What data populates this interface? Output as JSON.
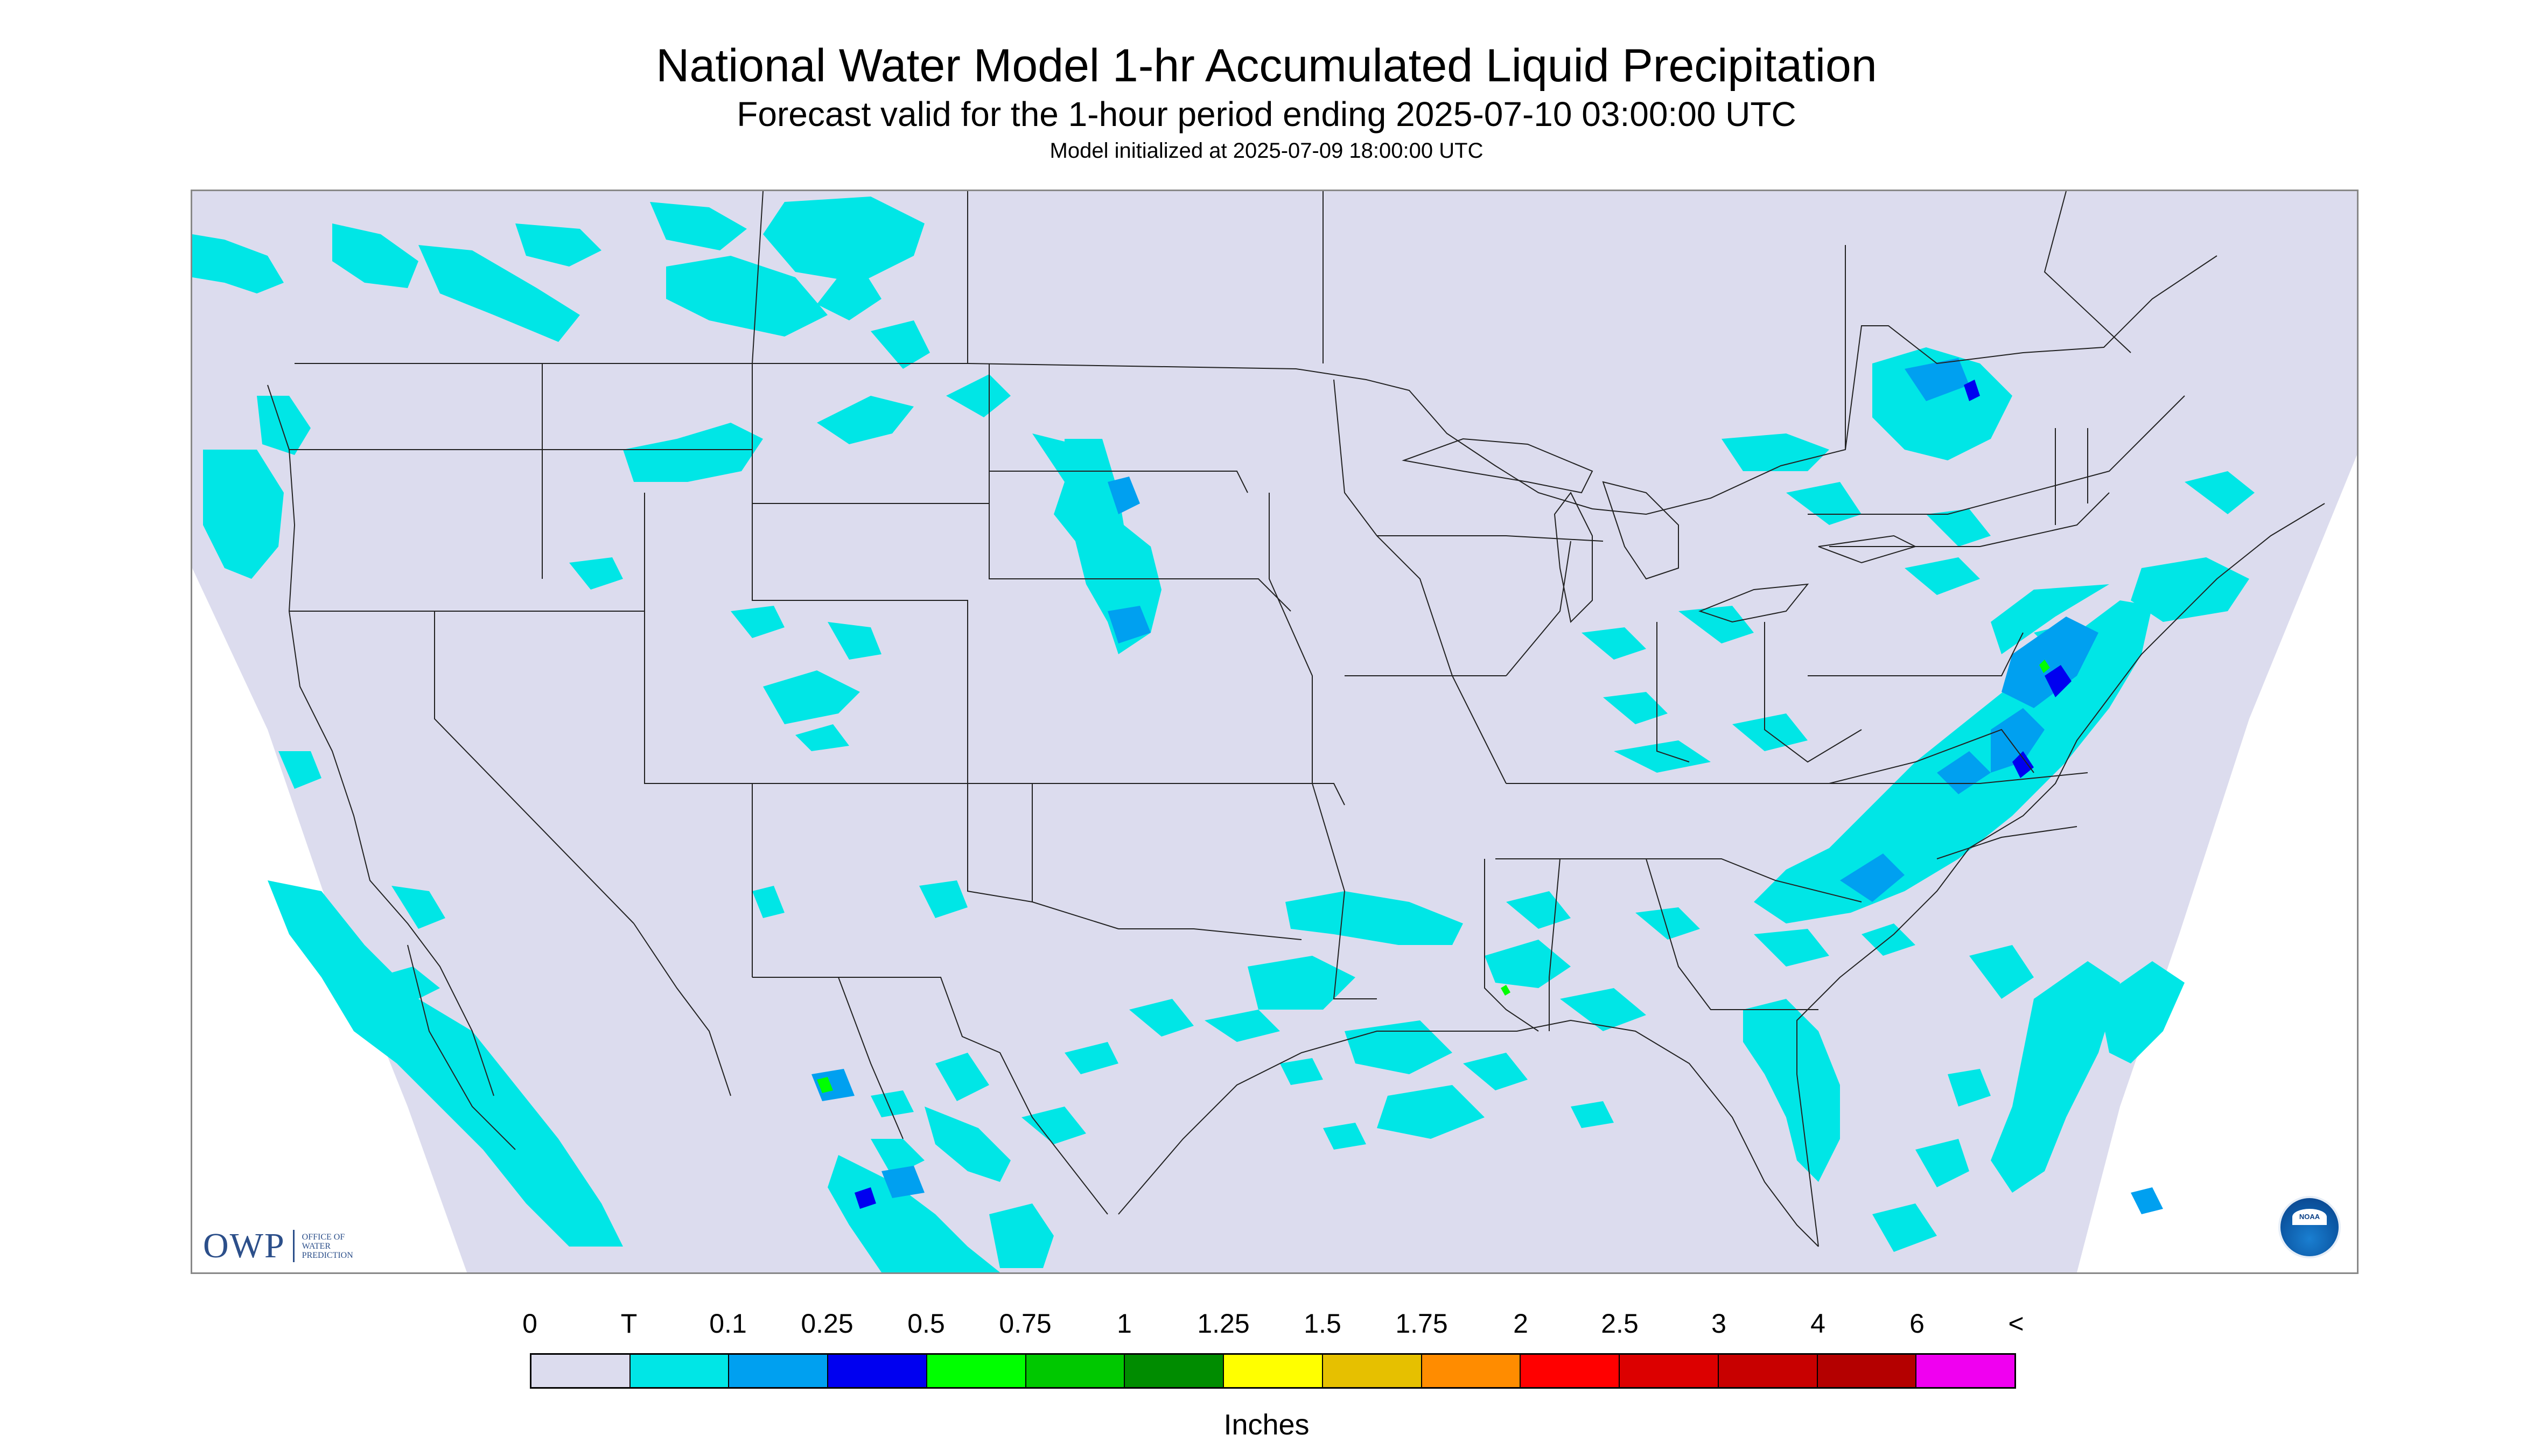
{
  "header": {
    "title": "National Water Model 1-hr Accumulated Liquid Precipitation",
    "subtitle": "Forecast valid for the 1-hour period ending 2025-07-10 03:00:00 UTC",
    "init_line": "Model initialized at 2025-07-09 18:00:00 UTC"
  },
  "logos": {
    "owp_letters": "OWP",
    "owp_words": [
      "OFFICE OF",
      "WATER",
      "PREDICTION"
    ],
    "noaa_text": "NOAA"
  },
  "colors": {
    "map_background": "#dcdcee",
    "land_lines": "#222222",
    "trace": "#00e6e6",
    "p01": "#00a0f0",
    "p025": "#0000f0"
  },
  "legend": {
    "labels": [
      "0",
      "T",
      "0.1",
      "0.25",
      "0.5",
      "0.75",
      "1",
      "1.25",
      "1.5",
      "1.75",
      "2",
      "2.5",
      "3",
      "4",
      "6",
      "<"
    ],
    "colors": [
      "#dcdcee",
      "#00e6e6",
      "#00a0f0",
      "#0000f0",
      "#00ff00",
      "#00c800",
      "#008c00",
      "#ffff00",
      "#e6c000",
      "#ff8c00",
      "#ff0000",
      "#dc0000",
      "#c80000",
      "#b40000",
      "#f000f0",
      "#a050d0"
    ],
    "units": "Inches"
  }
}
